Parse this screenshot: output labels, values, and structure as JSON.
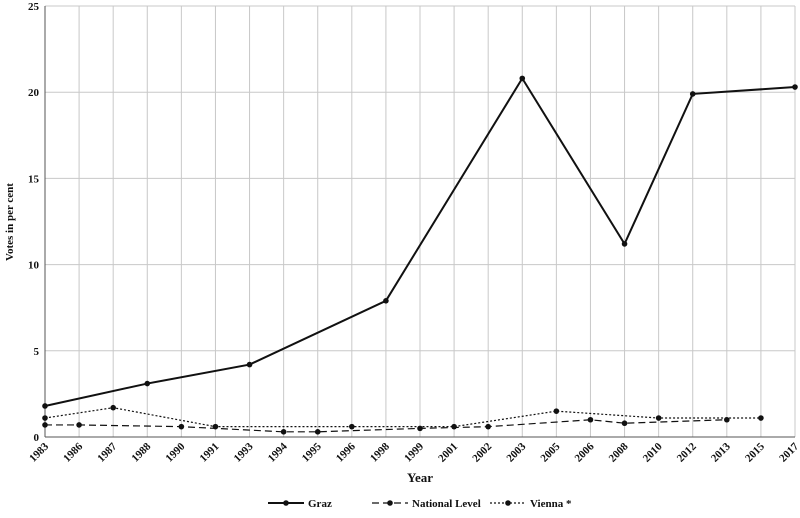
{
  "chart_data": {
    "type": "line",
    "xlabel": "Year",
    "ylabel": "Votes in per cent",
    "categories": [
      "1983",
      "1986",
      "1987",
      "1988",
      "1990",
      "1991",
      "1993",
      "1994",
      "1995",
      "1996",
      "1998",
      "1999",
      "2001",
      "2002",
      "2003",
      "2005",
      "2006",
      "2008",
      "2010",
      "2012",
      "2013",
      "2015",
      "2017"
    ],
    "ylim": [
      0,
      25
    ],
    "yticks": [
      0,
      5,
      10,
      15,
      20,
      25
    ],
    "grid": true,
    "legend": "bottom",
    "series": [
      {
        "name": "Graz",
        "color": "#111111",
        "dash": "solid",
        "x": [
          "1983",
          "1988",
          "1993",
          "1998",
          "2003",
          "2008",
          "2012",
          "2017"
        ],
        "values": [
          1.8,
          3.1,
          4.2,
          7.9,
          20.8,
          11.2,
          19.9,
          20.3
        ]
      },
      {
        "name": "National Level",
        "color": "#111111",
        "dash": "dashed",
        "x": [
          "1983",
          "1986",
          "1990",
          "1994",
          "1995",
          "1999",
          "2002",
          "2006",
          "2008",
          "2013"
        ],
        "values": [
          0.7,
          0.7,
          0.6,
          0.3,
          0.3,
          0.5,
          0.6,
          1.0,
          0.8,
          1.0
        ]
      },
      {
        "name": "Vienna *",
        "color": "#111111",
        "dash": "dotted",
        "x": [
          "1983",
          "1987",
          "1991",
          "1996",
          "2001",
          "2005",
          "2010",
          "2015"
        ],
        "values": [
          1.1,
          1.7,
          0.6,
          0.6,
          0.6,
          1.5,
          1.1,
          1.1
        ]
      }
    ]
  }
}
